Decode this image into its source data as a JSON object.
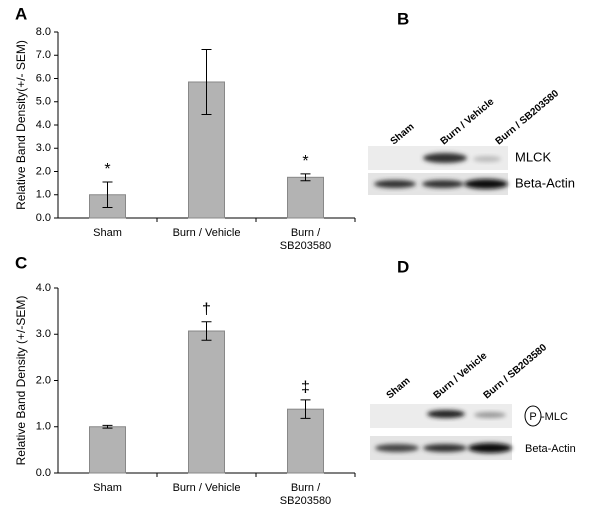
{
  "chart_data": [
    {
      "type": "bar",
      "panel_label": "A",
      "y_label": "Relative Band Density(+/- SEM)",
      "categories": [
        "Sham",
        "Burn / Vehicle",
        "Burn / SB203580"
      ],
      "values": [
        1.0,
        5.85,
        1.75
      ],
      "errors": [
        0.55,
        1.4,
        0.15
      ],
      "annotations": [
        "*",
        null,
        "*"
      ],
      "color": "#b3b3b3",
      "ylim": [
        0,
        8
      ],
      "yticks": [
        {
          "value": 0,
          "label": "0.0"
        },
        {
          "value": 1,
          "label": "1.0"
        },
        {
          "value": 2,
          "label": "2.0"
        },
        {
          "value": 3,
          "label": "3.0"
        },
        {
          "value": 4,
          "label": "4.0"
        },
        {
          "value": 5,
          "label": "5.0"
        },
        {
          "value": 6,
          "label": "6.0"
        },
        {
          "value": 7,
          "label": "7.0"
        },
        {
          "value": 8,
          "label": "8.0"
        }
      ]
    },
    {
      "type": "bar",
      "panel_label": "C",
      "y_label": "Relative Band Density (+/-SEM)",
      "categories": [
        "Sham",
        "Burn / Vehicle",
        "Burn / SB203580"
      ],
      "values": [
        1.0,
        3.07,
        1.38
      ],
      "errors": [
        0.03,
        0.2,
        0.2
      ],
      "annotations": [
        null,
        "†",
        "‡"
      ],
      "color": "#b3b3b3",
      "ylim": [
        0,
        4
      ],
      "yticks": [
        {
          "value": 0,
          "label": "0.0"
        },
        {
          "value": 1,
          "label": "1.0"
        },
        {
          "value": 2,
          "label": "2.0"
        },
        {
          "value": 3,
          "label": "3.0"
        },
        {
          "value": 4,
          "label": "4.0"
        }
      ]
    }
  ],
  "blots": [
    {
      "panel_label": "B",
      "lanes": [
        "Sham",
        "Burn / Vehicle",
        "Burn / SB203580"
      ],
      "rows": [
        {
          "label": "MLCK"
        },
        {
          "label": "Beta-Actin"
        }
      ]
    },
    {
      "panel_label": "D",
      "lanes": [
        "Sham",
        "Burn / Vehicle",
        "Burn / SB203580"
      ],
      "rows": [
        {
          "circled": "P",
          "label": "-MLC"
        },
        {
          "label": "Beta-Actin"
        }
      ]
    }
  ]
}
